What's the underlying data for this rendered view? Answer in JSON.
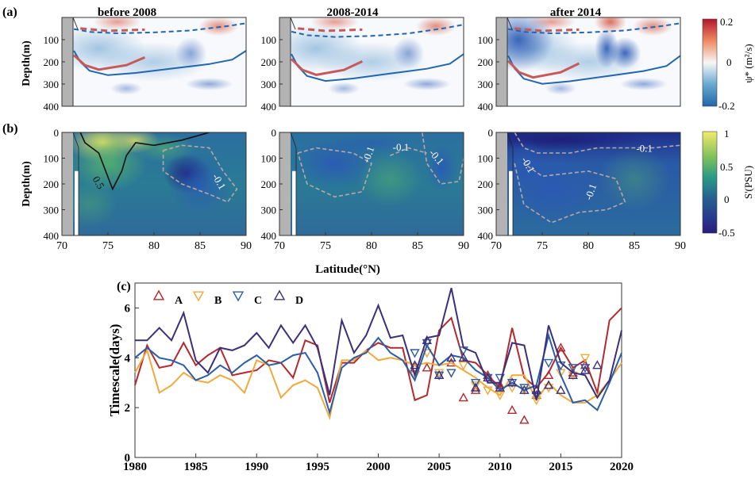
{
  "panel_labels": {
    "a": "(a)",
    "b": "(b)",
    "c": "(c)"
  },
  "period_titles": [
    "before 2008",
    "2008-2014",
    "after 2014"
  ],
  "depth_label": "Depth(m)",
  "latitude_label": "Latitude(°N)",
  "colorbar_a": {
    "label": "ψ* (m²/s)",
    "ticks": [
      "0.2",
      "0",
      "-0.2"
    ],
    "low_color": "#2166ac",
    "high_color": "#b2182b"
  },
  "colorbar_b": {
    "label": "S'(PSU)",
    "ticks": [
      "1",
      "0.5",
      "0",
      "-0.5"
    ],
    "low_color": "#2b1a7e",
    "high_color": "#f2eb6b"
  },
  "contour_labels_b": {
    "p1": [
      "0.5",
      "-0.1"
    ],
    "p2": [
      "-0.1",
      "-0.1",
      "-0.1"
    ],
    "p3": [
      "-0.1",
      "-0.1",
      "-0.1"
    ]
  },
  "axes_a": {
    "yticks": [
      "100",
      "200",
      "300",
      "400"
    ]
  },
  "axes_b": {
    "yticks": [
      "0",
      "100",
      "200",
      "300",
      "400"
    ],
    "xticks": [
      "70",
      "75",
      "80",
      "85",
      "90"
    ]
  },
  "chart_data": [
    {
      "type": "heatmap",
      "panel": "a",
      "subplots": [
        "before 2008",
        "2008-2014",
        "after 2014"
      ],
      "xlim": [
        70,
        90
      ],
      "ylim": [
        400,
        0
      ],
      "ylabel": "Depth(m)",
      "colorbar_range": [
        -0.2,
        0.2
      ]
    },
    {
      "type": "heatmap",
      "panel": "b",
      "subplots": [
        "before 2008",
        "2008-2014",
        "after 2014"
      ],
      "xlim": [
        70,
        90
      ],
      "ylim": [
        400,
        0
      ],
      "xlabel": "Latitude(°N)",
      "ylabel": "Depth(m)",
      "colorbar_range": [
        -0.5,
        1
      ]
    },
    {
      "type": "line",
      "panel": "c",
      "ylabel": "Timescale(days)",
      "xlim": [
        1980,
        2020
      ],
      "ylim": [
        0,
        7
      ],
      "xticks": [
        1980,
        1985,
        1990,
        1995,
        2000,
        2005,
        2010,
        2015,
        2020
      ],
      "yticks": [
        0,
        2,
        4,
        6
      ],
      "legend_position": "top-left",
      "series": [
        {
          "name": "A",
          "color": "#b22a2e",
          "marker": "triangle-up",
          "x": [
            1980,
            1981,
            1982,
            1983,
            1984,
            1985,
            1986,
            1987,
            1988,
            1989,
            1990,
            1991,
            1992,
            1993,
            1994,
            1995,
            1996,
            1997,
            1998,
            1999,
            2000,
            2001,
            2002,
            2003,
            2004,
            2005,
            2006,
            2007,
            2008,
            2009,
            2010,
            2011,
            2012,
            2013,
            2014,
            2015,
            2016,
            2017,
            2018,
            2019,
            2020
          ],
          "y": [
            2.9,
            4.5,
            3.6,
            3.7,
            4.6,
            3.7,
            4.1,
            4.4,
            3.3,
            3.4,
            3.5,
            3.9,
            3.8,
            3.2,
            4.7,
            4.5,
            2.2,
            3.8,
            3.8,
            4.3,
            4.6,
            4.4,
            4.4,
            2.3,
            2.5,
            5.1,
            5.6,
            3.9,
            3.8,
            3.3,
            2.8,
            5.2,
            3.2,
            2.8,
            3.4,
            4.4,
            3.6,
            3.9,
            2.6,
            5.5,
            6.0
          ],
          "markers_x": [
            2003,
            2004,
            2005,
            2006,
            2007,
            2008,
            2009,
            2010,
            2011,
            2012,
            2013,
            2014,
            2015,
            2016,
            2017
          ],
          "markers_y": [
            3.6,
            3.6,
            3.3,
            3.8,
            2.4,
            2.7,
            3.3,
            2.9,
            1.9,
            1.5,
            2.5,
            3.3,
            4.4,
            3.4,
            3.7
          ]
        },
        {
          "name": "B",
          "color": "#f2a93b",
          "marker": "triangle-down",
          "x": [
            1980,
            1981,
            1982,
            1983,
            1984,
            1985,
            1986,
            1987,
            1988,
            1989,
            1990,
            1991,
            1992,
            1993,
            1994,
            1995,
            1996,
            1997,
            1998,
            1999,
            2000,
            2001,
            2002,
            2003,
            2004,
            2005,
            2006,
            2007,
            2008,
            2009,
            2010,
            2011,
            2012,
            2013,
            2014,
            2015,
            2016,
            2017,
            2018,
            2019,
            2020
          ],
          "y": [
            3.4,
            4.3,
            2.6,
            2.9,
            3.4,
            3.1,
            3.0,
            3.3,
            3.1,
            2.6,
            3.9,
            3.7,
            2.4,
            2.9,
            3.1,
            2.8,
            1.6,
            3.9,
            3.9,
            4.3,
            3.9,
            4.0,
            3.9,
            3.7,
            3.8,
            3.7,
            3.8,
            3.5,
            3.2,
            2.8,
            2.5,
            3.3,
            3.3,
            2.3,
            3.0,
            2.5,
            2.2,
            2.2,
            2.5,
            3.1,
            3.8
          ],
          "markers_x": [
            2003,
            2004,
            2005,
            2006,
            2007,
            2008,
            2009,
            2010,
            2011,
            2012,
            2013,
            2014,
            2015,
            2016,
            2017
          ],
          "markers_y": [
            3.3,
            4.2,
            3.4,
            3.4,
            3.7,
            2.9,
            2.7,
            2.5,
            2.8,
            2.7,
            2.3,
            2.8,
            3.4,
            3.3,
            4.0
          ]
        },
        {
          "name": "C",
          "color": "#2b5ea6",
          "marker": "triangle-down",
          "x": [
            1980,
            1981,
            1982,
            1983,
            1984,
            1985,
            1986,
            1987,
            1988,
            1989,
            1990,
            1991,
            1992,
            1993,
            1994,
            1995,
            1996,
            1997,
            1998,
            1999,
            2000,
            2001,
            2002,
            2003,
            2004,
            2005,
            2006,
            2007,
            2008,
            2009,
            2010,
            2011,
            2012,
            2013,
            2014,
            2015,
            2016,
            2017,
            2018,
            2019,
            2020
          ],
          "y": [
            4.0,
            4.4,
            4.0,
            3.9,
            3.7,
            3.1,
            3.3,
            3.7,
            3.4,
            3.8,
            4.1,
            3.7,
            3.8,
            4.1,
            4.2,
            3.4,
            1.8,
            3.6,
            4.0,
            4.2,
            4.8,
            4.2,
            3.9,
            3.1,
            4.5,
            3.7,
            4.1,
            4.0,
            3.5,
            3.2,
            2.7,
            3.0,
            2.7,
            2.9,
            4.9,
            3.3,
            2.2,
            2.3,
            1.9,
            3.0,
            4.2
          ],
          "markers_x": [
            2003,
            2004,
            2005,
            2006,
            2007,
            2008,
            2009,
            2010,
            2011,
            2012,
            2013,
            2014,
            2015,
            2016,
            2017
          ],
          "markers_y": [
            4.2,
            4.6,
            3.3,
            3.4,
            4.3,
            3.0,
            3.2,
            3.2,
            3.0,
            2.8,
            2.5,
            3.8,
            3.7,
            3.6,
            3.6
          ]
        },
        {
          "name": "D",
          "color": "#3b2f7a",
          "marker": "triangle-up",
          "x": [
            1980,
            1981,
            1982,
            1983,
            1984,
            1985,
            1986,
            1987,
            1988,
            1989,
            1990,
            1991,
            1992,
            1993,
            1994,
            1995,
            1996,
            1997,
            1998,
            1999,
            2000,
            2001,
            2002,
            2003,
            2004,
            2005,
            2006,
            2007,
            2008,
            2009,
            2010,
            2011,
            2012,
            2013,
            2014,
            2015,
            2016,
            2017,
            2018,
            2019,
            2020
          ],
          "y": [
            4.7,
            4.7,
            5.2,
            4.7,
            5.8,
            3.9,
            3.4,
            4.4,
            4.3,
            4.5,
            5.0,
            4.4,
            5.3,
            4.6,
            5.3,
            4.4,
            2.5,
            5.5,
            4.2,
            4.9,
            6.1,
            4.8,
            4.9,
            3.3,
            4.8,
            4.9,
            6.8,
            4.4,
            4.2,
            3.0,
            3.0,
            4.6,
            4.5,
            2.3,
            5.3,
            3.8,
            3.4,
            3.3,
            2.4,
            3.1,
            5.1
          ],
          "markers_x": [
            2003,
            2004,
            2005,
            2006,
            2007,
            2008,
            2009,
            2010,
            2011,
            2012,
            2013,
            2014,
            2015,
            2016,
            2017,
            2018
          ],
          "markers_y": [
            3.7,
            4.7,
            3.3,
            4.0,
            4.0,
            2.8,
            3.2,
            2.8,
            3.0,
            2.7,
            2.7,
            2.9,
            2.7,
            3.3,
            3.5,
            3.7
          ]
        }
      ]
    }
  ]
}
